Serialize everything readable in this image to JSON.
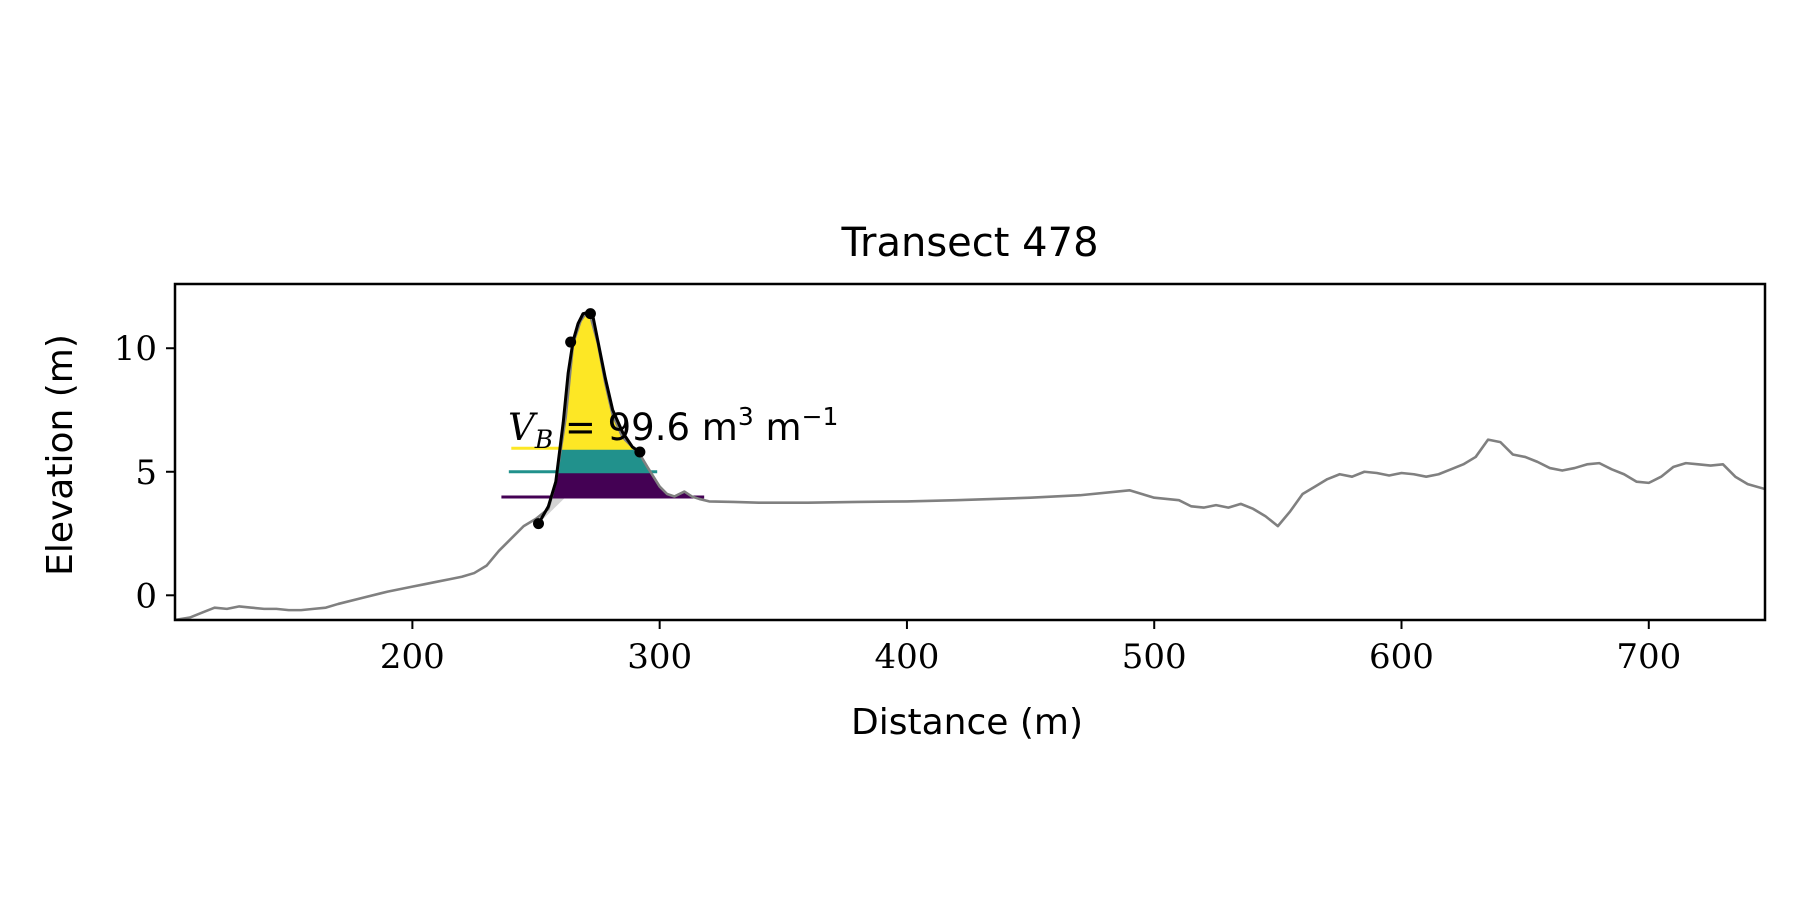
{
  "chart_data": {
    "type": "line",
    "title": "Transect 478",
    "xlabel": "Distance (m)",
    "ylabel": "Elevation (m)",
    "xlim": [
      104,
      747
    ],
    "ylim": [
      -1,
      12.6
    ],
    "xticks": [
      200,
      300,
      400,
      500,
      600,
      700
    ],
    "yticks": [
      0,
      5,
      10
    ],
    "grid": false,
    "annotation": {
      "prefix": "V",
      "subscript": "B",
      "value": "99.6",
      "unit_base": "m",
      "unit_power": "3",
      "per_base": "m",
      "per_power": "−1"
    },
    "series": [
      {
        "role": "profile",
        "color": "#808080",
        "x": [
          104,
          110,
          115,
          120,
          125,
          130,
          135,
          140,
          145,
          150,
          155,
          160,
          165,
          170,
          180,
          190,
          200,
          205,
          210,
          215,
          220,
          225,
          230,
          235,
          240,
          245,
          250,
          255,
          258,
          262,
          265,
          268,
          270,
          272,
          275,
          278,
          281,
          285,
          290,
          292,
          295,
          300,
          303,
          306,
          310,
          313,
          316,
          320,
          330,
          340,
          360,
          380,
          400,
          420,
          450,
          470,
          485,
          490,
          495,
          500,
          505,
          510,
          515,
          520,
          525,
          530,
          535,
          540,
          545,
          550,
          555,
          560,
          565,
          570,
          575,
          580,
          585,
          590,
          595,
          600,
          605,
          610,
          615,
          620,
          625,
          630,
          635,
          640,
          645,
          650,
          655,
          660,
          665,
          670,
          675,
          680,
          685,
          690,
          695,
          700,
          705,
          710,
          715,
          720,
          725,
          730,
          735,
          740,
          747
        ],
        "y": [
          -1.0,
          -0.9,
          -0.7,
          -0.5,
          -0.55,
          -0.45,
          -0.5,
          -0.55,
          -0.55,
          -0.6,
          -0.6,
          -0.55,
          -0.5,
          -0.35,
          -0.1,
          0.15,
          0.35,
          0.45,
          0.55,
          0.65,
          0.75,
          0.9,
          1.2,
          1.8,
          2.3,
          2.8,
          3.1,
          3.5,
          4.6,
          7.2,
          10.2,
          11.1,
          11.4,
          11.3,
          10.2,
          8.6,
          7.3,
          6.4,
          5.9,
          5.7,
          5.2,
          4.4,
          4.1,
          4.0,
          4.2,
          4.0,
          3.9,
          3.8,
          3.78,
          3.75,
          3.75,
          3.78,
          3.8,
          3.85,
          3.95,
          4.05,
          4.2,
          4.25,
          4.1,
          3.95,
          3.9,
          3.85,
          3.6,
          3.55,
          3.65,
          3.55,
          3.7,
          3.5,
          3.2,
          2.8,
          3.4,
          4.1,
          4.4,
          4.7,
          4.9,
          4.8,
          5.0,
          4.95,
          4.85,
          4.95,
          4.9,
          4.8,
          4.9,
          5.1,
          5.3,
          5.6,
          6.3,
          6.2,
          5.7,
          5.6,
          5.4,
          5.15,
          5.05,
          5.15,
          5.3,
          5.35,
          5.1,
          4.9,
          4.6,
          4.55,
          4.8,
          5.2,
          5.35,
          5.3,
          5.25,
          5.3,
          4.8,
          4.5,
          4.3
        ]
      },
      {
        "role": "dune-outline",
        "color": "#000000",
        "x": [
          251,
          255,
          258,
          261,
          263,
          265,
          267,
          269,
          271,
          273,
          275,
          278,
          281,
          285,
          289,
          292
        ],
        "y": [
          2.9,
          3.6,
          4.6,
          7.0,
          9.0,
          10.3,
          11.0,
          11.4,
          11.45,
          11.3,
          10.3,
          8.8,
          7.5,
          6.6,
          6.0,
          5.8
        ]
      }
    ],
    "key_points": {
      "x": [
        251,
        264,
        272,
        292
      ],
      "y": [
        2.9,
        10.25,
        11.4,
        5.8
      ]
    },
    "levels": [
      {
        "color": "#fde725",
        "y": 5.95,
        "x_from": 240,
        "x_to": 290
      },
      {
        "color": "#21918c",
        "y": 5.0,
        "x_from": 239,
        "x_to": 299
      },
      {
        "color": "#440154",
        "y": 3.98,
        "x_from": 236,
        "x_to": 318
      }
    ]
  }
}
